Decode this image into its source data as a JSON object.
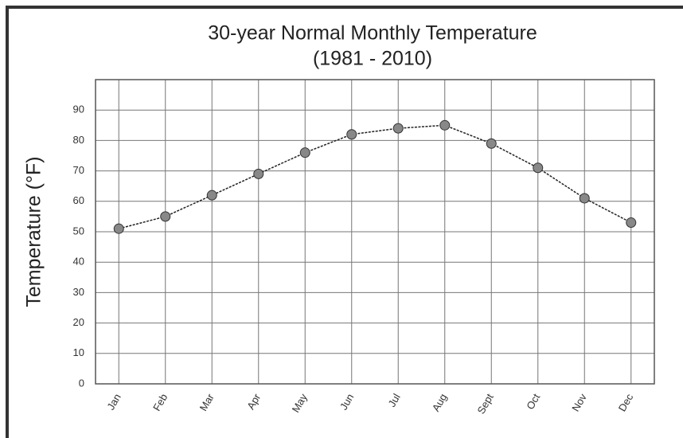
{
  "chart_data": {
    "type": "line",
    "title": "30-year Normal Monthly Temperature",
    "subtitle": "(1981 - 2010)",
    "y_label": "Temperature (°F)",
    "categories": [
      "Jan",
      "Feb",
      "Mar",
      "Apr",
      "May",
      "Jun",
      "Jul",
      "Aug",
      "Sept",
      "Oct",
      "Nov",
      "Dec"
    ],
    "values": [
      51,
      55,
      62,
      69,
      76,
      82,
      84,
      85,
      79,
      71,
      61,
      53
    ],
    "color": "#888888",
    "ylim": [
      0,
      100
    ],
    "yticks": [
      0,
      10,
      20,
      30,
      40,
      50,
      60,
      70,
      80,
      90
    ],
    "grid": true
  }
}
